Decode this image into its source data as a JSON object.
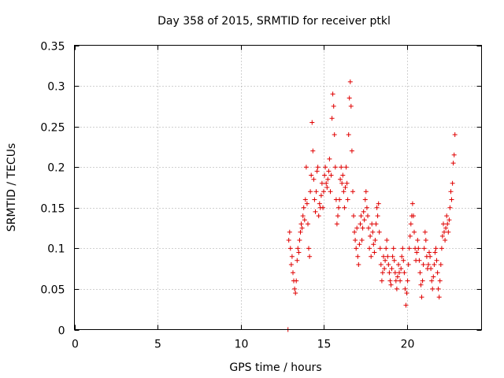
{
  "chart_data": {
    "type": "scatter",
    "title": "Day 358 of 2015, SRMTID for receiver ptkl",
    "xlabel": "GPS time / hours",
    "ylabel": "SRMTID / TECUs",
    "xlim": [
      0,
      24.5
    ],
    "ylim": [
      0,
      0.35
    ],
    "xticks": [
      0,
      5,
      10,
      15,
      20
    ],
    "xtick_labels": [
      "0",
      "5",
      "10",
      "15",
      "20"
    ],
    "yticks": [
      0,
      0.05,
      0.1,
      0.15,
      0.2,
      0.25,
      0.3,
      0.35
    ],
    "ytick_labels": [
      "0",
      "0.05",
      "0.1",
      "0.15",
      "0.2",
      "0.25",
      "0.3",
      "0.35"
    ],
    "grid": true,
    "marker": "+",
    "color": "#e00000",
    "series": [
      {
        "name": "SRMTID",
        "points": [
          [
            12.85,
            0.0
          ],
          [
            12.9,
            0.11
          ],
          [
            12.95,
            0.12
          ],
          [
            13.0,
            0.1
          ],
          [
            13.05,
            0.08
          ],
          [
            13.1,
            0.09
          ],
          [
            13.15,
            0.07
          ],
          [
            13.2,
            0.06
          ],
          [
            13.25,
            0.05
          ],
          [
            13.3,
            0.045
          ],
          [
            13.35,
            0.06
          ],
          [
            13.4,
            0.085
          ],
          [
            13.45,
            0.1
          ],
          [
            13.5,
            0.095
          ],
          [
            13.55,
            0.11
          ],
          [
            13.6,
            0.12
          ],
          [
            13.65,
            0.13
          ],
          [
            13.7,
            0.125
          ],
          [
            13.75,
            0.14
          ],
          [
            13.8,
            0.15
          ],
          [
            13.85,
            0.135
          ],
          [
            13.9,
            0.16
          ],
          [
            13.95,
            0.2
          ],
          [
            14.0,
            0.155
          ],
          [
            14.05,
            0.13
          ],
          [
            14.1,
            0.1
          ],
          [
            14.15,
            0.09
          ],
          [
            14.2,
            0.17
          ],
          [
            14.25,
            0.19
          ],
          [
            14.3,
            0.255
          ],
          [
            14.35,
            0.22
          ],
          [
            14.4,
            0.185
          ],
          [
            14.45,
            0.16
          ],
          [
            14.5,
            0.145
          ],
          [
            14.55,
            0.17
          ],
          [
            14.6,
            0.195
          ],
          [
            14.65,
            0.2
          ],
          [
            14.7,
            0.14
          ],
          [
            14.75,
            0.155
          ],
          [
            14.8,
            0.15
          ],
          [
            14.85,
            0.165
          ],
          [
            14.9,
            0.18
          ],
          [
            14.95,
            0.15
          ],
          [
            15.0,
            0.17
          ],
          [
            15.05,
            0.19
          ],
          [
            15.1,
            0.2
          ],
          [
            15.15,
            0.18
          ],
          [
            15.2,
            0.175
          ],
          [
            15.25,
            0.185
          ],
          [
            15.3,
            0.195
          ],
          [
            15.35,
            0.21
          ],
          [
            15.4,
            0.17
          ],
          [
            15.45,
            0.19
          ],
          [
            15.5,
            0.26
          ],
          [
            15.55,
            0.29
          ],
          [
            15.6,
            0.275
          ],
          [
            15.65,
            0.24
          ],
          [
            15.7,
            0.2
          ],
          [
            15.75,
            0.16
          ],
          [
            15.8,
            0.13
          ],
          [
            15.85,
            0.14
          ],
          [
            15.9,
            0.15
          ],
          [
            15.95,
            0.16
          ],
          [
            16.0,
            0.185
          ],
          [
            16.05,
            0.2
          ],
          [
            16.1,
            0.18
          ],
          [
            16.15,
            0.19
          ],
          [
            16.2,
            0.17
          ],
          [
            16.25,
            0.15
          ],
          [
            16.3,
            0.175
          ],
          [
            16.35,
            0.2
          ],
          [
            16.4,
            0.18
          ],
          [
            16.45,
            0.16
          ],
          [
            16.5,
            0.24
          ],
          [
            16.55,
            0.285
          ],
          [
            16.6,
            0.305
          ],
          [
            16.65,
            0.275
          ],
          [
            16.7,
            0.22
          ],
          [
            16.75,
            0.17
          ],
          [
            16.8,
            0.14
          ],
          [
            16.85,
            0.12
          ],
          [
            16.9,
            0.11
          ],
          [
            16.95,
            0.1
          ],
          [
            17.0,
            0.125
          ],
          [
            17.05,
            0.09
          ],
          [
            17.1,
            0.08
          ],
          [
            17.15,
            0.105
          ],
          [
            17.2,
            0.13
          ],
          [
            17.25,
            0.14
          ],
          [
            17.3,
            0.11
          ],
          [
            17.35,
            0.125
          ],
          [
            17.4,
            0.145
          ],
          [
            17.45,
            0.135
          ],
          [
            17.5,
            0.16
          ],
          [
            17.55,
            0.17
          ],
          [
            17.6,
            0.15
          ],
          [
            17.65,
            0.14
          ],
          [
            17.7,
            0.125
          ],
          [
            17.75,
            0.1
          ],
          [
            17.8,
            0.115
          ],
          [
            17.85,
            0.09
          ],
          [
            17.9,
            0.13
          ],
          [
            17.95,
            0.12
          ],
          [
            18.0,
            0.105
          ],
          [
            18.05,
            0.095
          ],
          [
            18.1,
            0.11
          ],
          [
            18.15,
            0.13
          ],
          [
            18.2,
            0.15
          ],
          [
            18.25,
            0.14
          ],
          [
            18.3,
            0.155
          ],
          [
            18.35,
            0.12
          ],
          [
            18.4,
            0.1
          ],
          [
            18.45,
            0.08
          ],
          [
            18.5,
            0.06
          ],
          [
            18.55,
            0.07
          ],
          [
            18.6,
            0.09
          ],
          [
            18.65,
            0.075
          ],
          [
            18.7,
            0.085
          ],
          [
            18.75,
            0.1
          ],
          [
            18.8,
            0.11
          ],
          [
            18.85,
            0.09
          ],
          [
            18.9,
            0.08
          ],
          [
            18.95,
            0.07
          ],
          [
            19.0,
            0.06
          ],
          [
            19.05,
            0.055
          ],
          [
            19.1,
            0.075
          ],
          [
            19.15,
            0.09
          ],
          [
            19.2,
            0.1
          ],
          [
            19.25,
            0.085
          ],
          [
            19.3,
            0.07
          ],
          [
            19.35,
            0.06
          ],
          [
            19.4,
            0.05
          ],
          [
            19.45,
            0.065
          ],
          [
            19.5,
            0.08
          ],
          [
            19.55,
            0.07
          ],
          [
            19.6,
            0.06
          ],
          [
            19.65,
            0.075
          ],
          [
            19.7,
            0.09
          ],
          [
            19.75,
            0.1
          ],
          [
            19.8,
            0.085
          ],
          [
            19.85,
            0.07
          ],
          [
            19.9,
            0.05
          ],
          [
            19.95,
            0.03
          ],
          [
            20.0,
            0.045
          ],
          [
            20.05,
            0.06
          ],
          [
            20.1,
            0.08
          ],
          [
            20.15,
            0.1
          ],
          [
            20.2,
            0.115
          ],
          [
            20.25,
            0.13
          ],
          [
            20.3,
            0.14
          ],
          [
            20.35,
            0.155
          ],
          [
            20.4,
            0.14
          ],
          [
            20.45,
            0.12
          ],
          [
            20.5,
            0.1
          ],
          [
            20.55,
            0.085
          ],
          [
            20.6,
            0.095
          ],
          [
            20.65,
            0.11
          ],
          [
            20.7,
            0.1
          ],
          [
            20.75,
            0.085
          ],
          [
            20.8,
            0.07
          ],
          [
            20.85,
            0.055
          ],
          [
            20.9,
            0.04
          ],
          [
            20.95,
            0.06
          ],
          [
            21.0,
            0.08
          ],
          [
            21.05,
            0.1
          ],
          [
            21.1,
            0.12
          ],
          [
            21.15,
            0.11
          ],
          [
            21.2,
            0.09
          ],
          [
            21.25,
            0.075
          ],
          [
            21.3,
            0.08
          ],
          [
            21.35,
            0.095
          ],
          [
            21.4,
            0.09
          ],
          [
            21.45,
            0.075
          ],
          [
            21.5,
            0.06
          ],
          [
            21.55,
            0.05
          ],
          [
            21.6,
            0.065
          ],
          [
            21.65,
            0.08
          ],
          [
            21.7,
            0.095
          ],
          [
            21.75,
            0.1
          ],
          [
            21.8,
            0.085
          ],
          [
            21.85,
            0.07
          ],
          [
            21.9,
            0.05
          ],
          [
            21.95,
            0.04
          ],
          [
            22.0,
            0.06
          ],
          [
            22.05,
            0.08
          ],
          [
            22.1,
            0.1
          ],
          [
            22.15,
            0.115
          ],
          [
            22.2,
            0.13
          ],
          [
            22.25,
            0.12
          ],
          [
            22.3,
            0.11
          ],
          [
            22.35,
            0.125
          ],
          [
            22.4,
            0.14
          ],
          [
            22.45,
            0.13
          ],
          [
            22.5,
            0.12
          ],
          [
            22.55,
            0.135
          ],
          [
            22.6,
            0.15
          ],
          [
            22.65,
            0.17
          ],
          [
            22.7,
            0.16
          ],
          [
            22.75,
            0.18
          ],
          [
            22.8,
            0.205
          ],
          [
            22.85,
            0.215
          ],
          [
            22.9,
            0.24
          ]
        ]
      }
    ]
  }
}
